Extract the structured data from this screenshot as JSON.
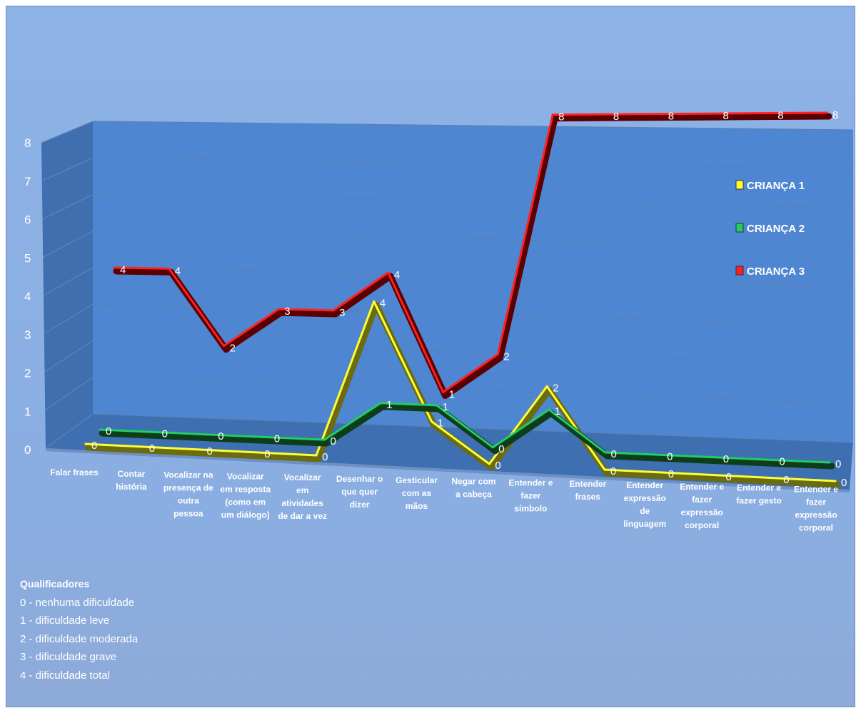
{
  "chart_data": {
    "type": "line",
    "yticks": [
      "0",
      "1",
      "2",
      "3",
      "4",
      "5",
      "6",
      "7",
      "8"
    ],
    "ylim": [
      0,
      8
    ],
    "categories": [
      "Falar frases",
      "Contar história",
      "Vocalizar na presença de outra pessoa",
      "Vocalizar em resposta (como em um diálogo)",
      "Vocalizar em atividades de dar a vez",
      "Desenhar o que quer dizer",
      "Gesticular com as mãos",
      "Negar com a cabeça",
      "Entender e fazer símbolo",
      "Entender frases",
      "Entender expressão de linguagem",
      "Entender e fazer expressão corporal",
      "Entender e fazer gesto",
      "Entender e fazer expressão corporal"
    ],
    "category_lines": [
      [
        "Falar frases"
      ],
      [
        "Contar",
        "história"
      ],
      [
        "Vocalizar na",
        "presença de",
        "outra",
        "pessoa"
      ],
      [
        "Vocalizar",
        "em resposta",
        "(como em",
        "um diálogo)"
      ],
      [
        "Vocalizar",
        "em",
        "atividades",
        "de dar a vez"
      ],
      [
        "Desenhar o",
        "que quer",
        "dizer"
      ],
      [
        "Gesticular",
        "com as",
        "mãos"
      ],
      [
        "Negar com",
        "a cabeça"
      ],
      [
        "Entender e",
        "fazer",
        "símbolo"
      ],
      [
        "Entender",
        "frases"
      ],
      [
        "Entender",
        "expressão",
        "de",
        "linguagem"
      ],
      [
        "Entender e",
        "fazer",
        "expressão",
        "corporal"
      ],
      [
        "Entender e",
        "fazer gesto"
      ],
      [
        "Entender e",
        "fazer",
        "expressão",
        "corporal"
      ]
    ],
    "series": [
      {
        "name": "CRIANÇA 1",
        "color": "#ffff33",
        "values": [
          0,
          0,
          0,
          0,
          0,
          4,
          1,
          0,
          2,
          0,
          0,
          0,
          0,
          0
        ]
      },
      {
        "name": "CRIANÇA 2",
        "color": "#22cc66",
        "values": [
          0,
          0,
          0,
          0,
          0,
          1,
          1,
          0,
          1,
          0,
          0,
          0,
          0,
          0
        ]
      },
      {
        "name": "CRIANÇA 3",
        "color": "#ff2020",
        "values": [
          4,
          4,
          2,
          3,
          3,
          4,
          1,
          2,
          8,
          8,
          8,
          8,
          8,
          8
        ]
      }
    ],
    "legend_position": "right",
    "grid": true
  },
  "qualifiers": {
    "title": "Qualificadores",
    "items": [
      "0 - nenhuma dificuldade",
      "1 - dificuldade leve",
      "2 - dificuldade moderada",
      "3 - dificuldade grave",
      "4 - dificuldade total"
    ]
  }
}
